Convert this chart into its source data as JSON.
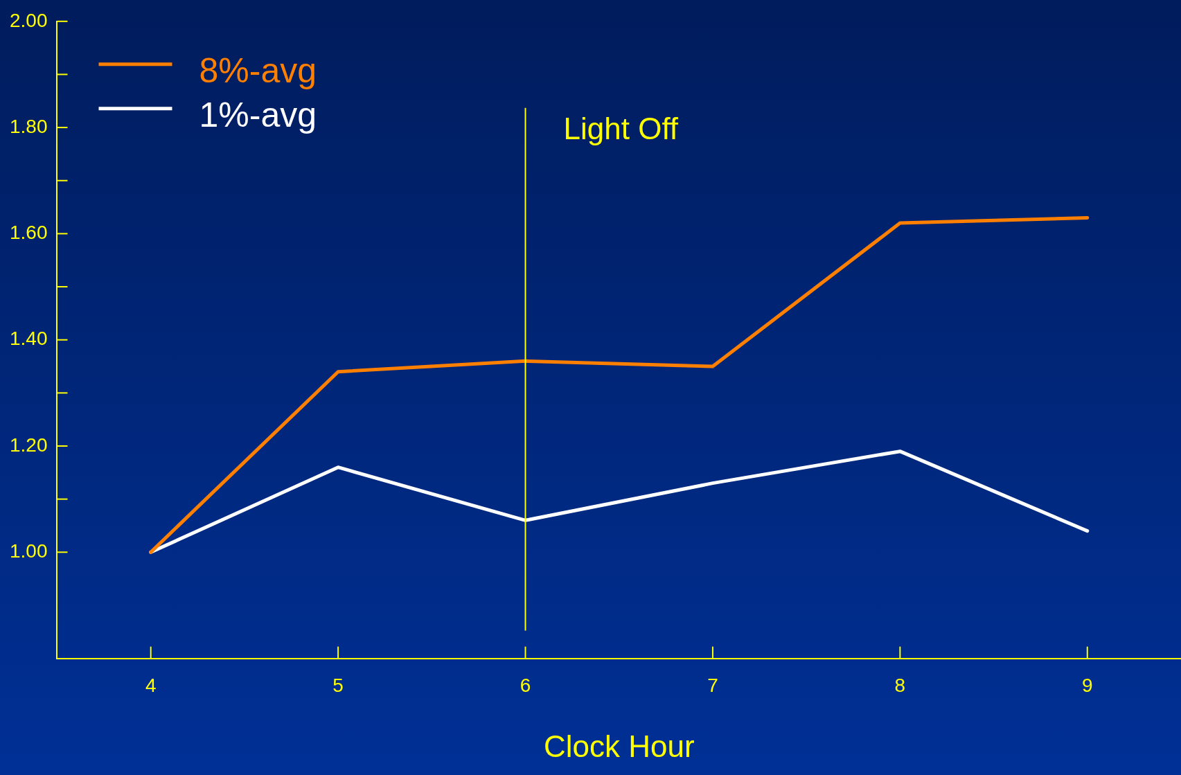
{
  "chart_data": {
    "type": "line",
    "xlabel": "Clock Hour",
    "x": [
      4,
      5,
      6,
      7,
      8,
      9
    ],
    "series": [
      {
        "name": "8%-avg",
        "color": "#ff7f00",
        "values": [
          1.0,
          1.34,
          1.36,
          1.35,
          1.62,
          1.63
        ]
      },
      {
        "name": "1%-avg",
        "color": "#ffffff",
        "values": [
          1.0,
          1.16,
          1.06,
          1.13,
          1.19,
          1.04
        ]
      }
    ],
    "xlim": [
      3.5,
      9.5
    ],
    "xticks": [
      4,
      5,
      6,
      7,
      8,
      9
    ],
    "ylim": [
      0.8,
      2.0
    ],
    "yticks": [
      {
        "value": 1.0,
        "label": "1.00"
      },
      {
        "value": 1.1,
        "label": null
      },
      {
        "value": 1.2,
        "label": "1.20"
      },
      {
        "value": 1.3,
        "label": null
      },
      {
        "value": 1.4,
        "label": "1.40"
      },
      {
        "value": 1.5,
        "label": null
      },
      {
        "value": 1.6,
        "label": "1.60"
      },
      {
        "value": 1.7,
        "label": null
      },
      {
        "value": 1.8,
        "label": "1.80"
      },
      {
        "value": 1.9,
        "label": null
      },
      {
        "value": 2.0,
        "label": "2.00"
      }
    ],
    "ref_lines": [
      {
        "axis": "x",
        "value": 6,
        "label": "Light Off",
        "color": "#ffff00"
      }
    ],
    "legend": "top left",
    "grid": false,
    "marker": "none",
    "line_style": "solid"
  }
}
